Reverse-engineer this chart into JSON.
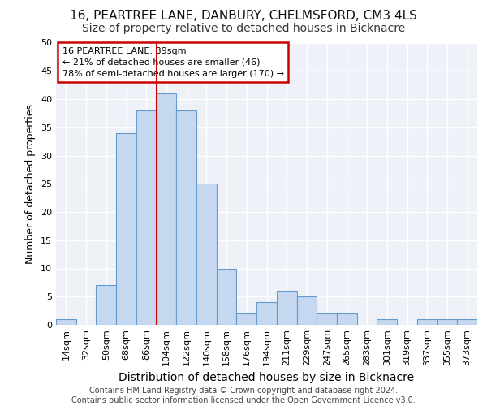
{
  "title1": "16, PEARTREE LANE, DANBURY, CHELMSFORD, CM3 4LS",
  "title2": "Size of property relative to detached houses in Bicknacre",
  "xlabel": "Distribution of detached houses by size in Bicknacre",
  "ylabel": "Number of detached properties",
  "footer1": "Contains HM Land Registry data © Crown copyright and database right 2024.",
  "footer2": "Contains public sector information licensed under the Open Government Licence v3.0.",
  "categories": [
    "14sqm",
    "32sqm",
    "50sqm",
    "68sqm",
    "86sqm",
    "104sqm",
    "122sqm",
    "140sqm",
    "158sqm",
    "176sqm",
    "194sqm",
    "211sqm",
    "229sqm",
    "247sqm",
    "265sqm",
    "283sqm",
    "301sqm",
    "319sqm",
    "337sqm",
    "355sqm",
    "373sqm"
  ],
  "values": [
    1,
    0,
    7,
    34,
    38,
    41,
    38,
    25,
    10,
    2,
    4,
    6,
    5,
    2,
    2,
    0,
    1,
    0,
    1,
    1,
    1
  ],
  "bar_color": "#c5d8f0",
  "bar_edge_color": "#6699cc",
  "annotation_text1": "16 PEARTREE LANE: 89sqm",
  "annotation_text2": "← 21% of detached houses are smaller (46)",
  "annotation_text3": "78% of semi-detached houses are larger (170) →",
  "annotation_box_color": "white",
  "annotation_box_edge": "#cc0000",
  "vline_color": "#cc0000",
  "vline_x": 4.5,
  "ylim": [
    0,
    50
  ],
  "yticks": [
    0,
    5,
    10,
    15,
    20,
    25,
    30,
    35,
    40,
    45,
    50
  ],
  "bg_color": "#eef2f8",
  "grid_color": "white",
  "title1_fontsize": 11,
  "title2_fontsize": 10,
  "xlabel_fontsize": 10,
  "ylabel_fontsize": 9,
  "tick_fontsize": 8,
  "annot_fontsize": 8,
  "footer_fontsize": 7
}
